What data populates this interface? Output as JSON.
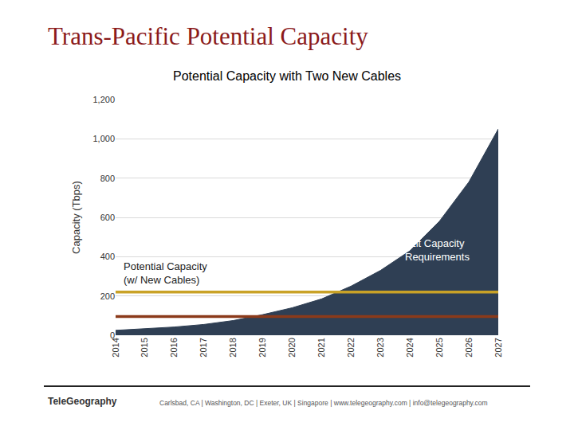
{
  "slide": {
    "title": "Trans-Pacific Potential Capacity",
    "footer": {
      "logo": "TeleGeography",
      "text": "Carlsbad, CA | Washington, DC | Exeter, UK | Singapore | www.telegeography.com | info@telegeography.com"
    }
  },
  "chart_data": {
    "type": "area",
    "title": "Potential Capacity with Two New Cables",
    "y_label": "Capacity (Tbps)",
    "categories": [
      "2014",
      "2015",
      "2016",
      "2017",
      "2018",
      "2019",
      "2020",
      "2021",
      "2022",
      "2023",
      "2024",
      "2025",
      "2026",
      "2027"
    ],
    "series": [
      {
        "name": "Lit Capacity Requirements",
        "type": "area",
        "color": "#2f3f54",
        "values": [
          25,
          33,
          42,
          55,
          75,
          105,
          140,
          185,
          250,
          330,
          430,
          580,
          780,
          1050
        ]
      },
      {
        "name": "Potential Capacity (w/ New Cables)",
        "type": "line",
        "color": "#c9a227",
        "values": [
          220,
          220,
          220,
          220,
          220,
          220,
          220,
          220,
          220,
          220,
          220,
          220,
          220,
          220
        ]
      },
      {
        "type": "line",
        "color": "#8b3a1a",
        "values": [
          95,
          95,
          95,
          95,
          95,
          95,
          95,
          95,
          95,
          95,
          95,
          95,
          95,
          95
        ]
      }
    ],
    "ylim": [
      0,
      1200
    ],
    "yticks": [
      0,
      200,
      400,
      600,
      800,
      {
        "value": 1000,
        "label": "1,000"
      },
      {
        "value": 1200,
        "label": "1,200"
      }
    ],
    "grid": true
  }
}
